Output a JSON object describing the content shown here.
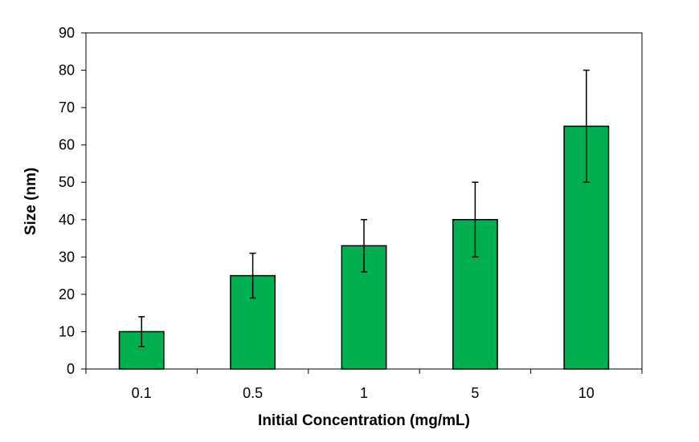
{
  "chart_data": {
    "type": "bar",
    "title": "",
    "xlabel": "Initial Concentration (mg/mL)",
    "ylabel": "Size (nm)",
    "categories": [
      "0.1",
      "0.5",
      "1",
      "5",
      "10"
    ],
    "values": [
      10,
      25,
      33,
      40,
      65
    ],
    "error_low": [
      6,
      19,
      26,
      30,
      50
    ],
    "error_high": [
      14,
      31,
      40,
      50,
      80
    ],
    "ylim": [
      0,
      90
    ],
    "yticks": [
      "0",
      "10",
      "20",
      "30",
      "40",
      "50",
      "60",
      "70",
      "80",
      "90"
    ],
    "grid": false,
    "legend": "none",
    "colors": {
      "bar_fill": "#00B050",
      "bar_stroke": "#000000",
      "axis": "#000000"
    }
  }
}
